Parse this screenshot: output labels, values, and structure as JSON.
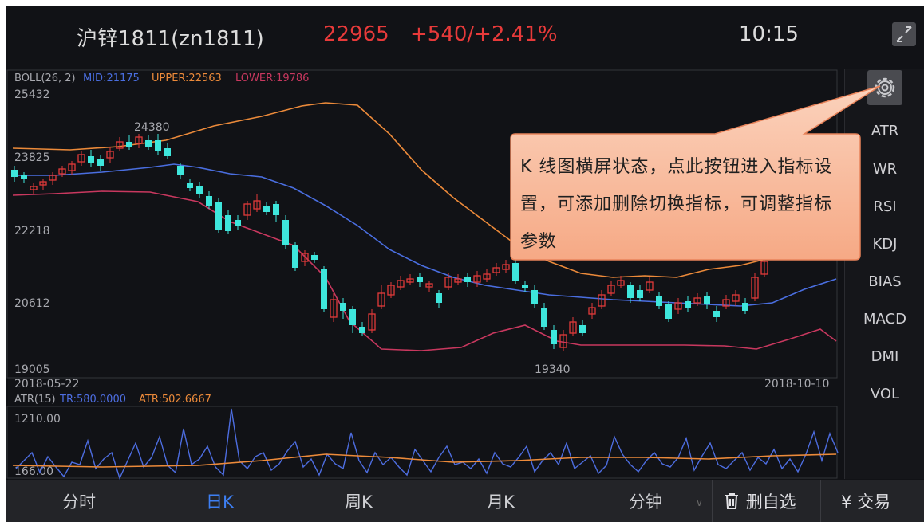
{
  "header": {
    "title": "沪锌1811(zn1811)",
    "price": "22965",
    "change": "+540/+2.41%",
    "time": "10:15"
  },
  "main_chart": {
    "indicator": "BOLL(26, 2)",
    "mid_label": "MID:21175",
    "upper_label": "UPPER:22563",
    "lower_label": "LOWER:19786",
    "y_ticks": [
      "25432",
      "23825",
      "22218",
      "20612",
      "19005"
    ],
    "high_mark": "24380",
    "low_mark": "19340",
    "start_date": "2018-05-22",
    "end_date": "2018-10-10",
    "colors": {
      "up": "#e33a3a",
      "down": "#3ee6dc",
      "mid": "#4a6ee0",
      "upper": "#ec8a3a",
      "lower": "#c9385f"
    }
  },
  "sub_chart": {
    "indicator": "ATR(15)",
    "tr_label": "TR:580.0000",
    "atr_label": "ATR:502.6667",
    "y_top": "1210.00",
    "y_bottom": "166.00",
    "colors": {
      "tr": "#4d6de0",
      "atr": "#ec8a3a"
    }
  },
  "side_menu": {
    "settings_icon": "gear-icon",
    "items": [
      "ATR",
      "WR",
      "RSI",
      "KDJ",
      "BIAS",
      "MACD",
      "DMI",
      "VOL"
    ],
    "active": "ATR"
  },
  "tooltip": {
    "text": "K 线图横屏状态，点此按钮进入指标设置，可添加删除切换指标，可调整指标参数"
  },
  "bottom_tabs": [
    "分时",
    "日K",
    "周K",
    "月K",
    "分钟"
  ],
  "active_tab": "日K",
  "actions": {
    "delete_label": "删自选",
    "trade_label": "交易",
    "delete_icon": "trash-icon",
    "trade_icon": "yen-icon"
  }
}
